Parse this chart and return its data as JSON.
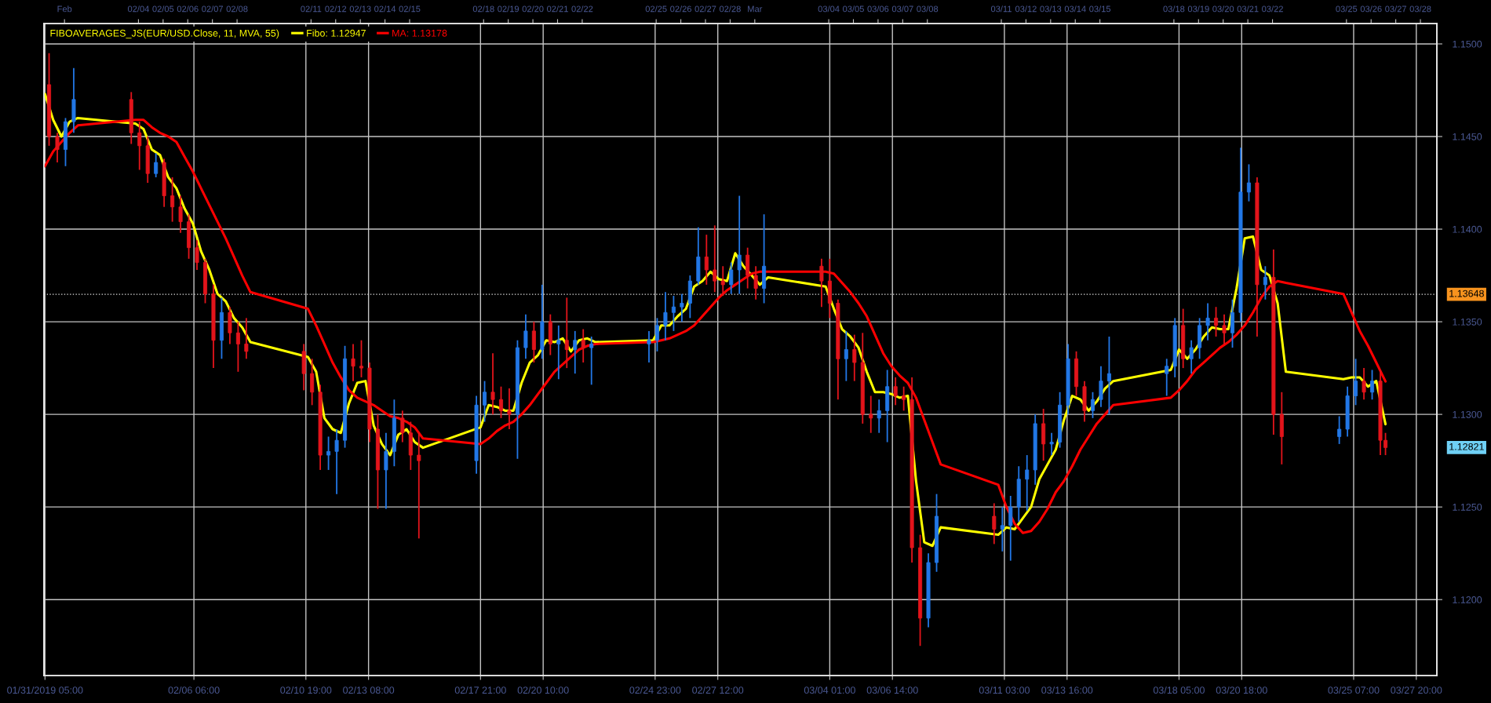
{
  "chart_data": {
    "type": "candlestick",
    "legend_title": "FIBOAVERAGES_JS(EUR/USD.Close, 11, MVA, 55)",
    "legend": "top left",
    "grid": true,
    "xlim": [
      "2019-01-31T04:00",
      "2019-03-28T16:00"
    ],
    "xticks": [
      {
        "value": "2019-01-31T05:00",
        "label": "01/31/2019 05:00"
      },
      {
        "value": "2019-02-06T06:00",
        "label": "02/06 06:00"
      },
      {
        "value": "2019-02-10T19:00",
        "label": "02/10 19:00"
      },
      {
        "value": "2019-02-13T08:00",
        "label": "02/13 08:00"
      },
      {
        "value": "2019-02-17T21:00",
        "label": "02/17 21:00"
      },
      {
        "value": "2019-02-20T10:00",
        "label": "02/20 10:00"
      },
      {
        "value": "2019-02-24T23:00",
        "label": "02/24 23:00"
      },
      {
        "value": "2019-02-27T12:00",
        "label": "02/27 12:00"
      },
      {
        "value": "2019-03-04T01:00",
        "label": "03/04 01:00"
      },
      {
        "value": "2019-03-06T14:00",
        "label": "03/06 14:00"
      },
      {
        "value": "2019-03-11T03:00",
        "label": "03/11 03:00"
      },
      {
        "value": "2019-03-13T16:00",
        "label": "03/13 16:00"
      },
      {
        "value": "2019-03-18T05:00",
        "label": "03/18 05:00"
      },
      {
        "value": "2019-03-20T18:00",
        "label": "03/20 18:00"
      },
      {
        "value": "2019-03-25T07:00",
        "label": "03/25 07:00"
      },
      {
        "value": "2019-03-27T20:00",
        "label": "03/27 20:00"
      }
    ],
    "x2lim": [
      "2019-01-31T04:00",
      "2019-03-28T16:00"
    ],
    "x2ticks": [
      {
        "value": "2019-02-01",
        "label": "Feb"
      },
      {
        "value": "2019-02-04",
        "label": "02/04"
      },
      {
        "value": "2019-02-05",
        "label": "02/05"
      },
      {
        "value": "2019-02-06",
        "label": "02/06"
      },
      {
        "value": "2019-02-07",
        "label": "02/07"
      },
      {
        "value": "2019-02-08",
        "label": "02/08"
      },
      {
        "value": "2019-02-11",
        "label": "02/11"
      },
      {
        "value": "2019-02-12",
        "label": "02/12"
      },
      {
        "value": "2019-02-13",
        "label": "02/13"
      },
      {
        "value": "2019-02-14",
        "label": "02/14"
      },
      {
        "value": "2019-02-15",
        "label": "02/15"
      },
      {
        "value": "2019-02-18",
        "label": "02/18"
      },
      {
        "value": "2019-02-19",
        "label": "02/19"
      },
      {
        "value": "2019-02-20",
        "label": "02/20"
      },
      {
        "value": "2019-02-21",
        "label": "02/21"
      },
      {
        "value": "2019-02-22",
        "label": "02/22"
      },
      {
        "value": "2019-02-25",
        "label": "02/25"
      },
      {
        "value": "2019-02-26",
        "label": "02/26"
      },
      {
        "value": "2019-02-27",
        "label": "02/27"
      },
      {
        "value": "2019-02-28",
        "label": "02/28"
      },
      {
        "value": "2019-03-01",
        "label": "Mar"
      },
      {
        "value": "2019-03-04",
        "label": "03/04"
      },
      {
        "value": "2019-03-05",
        "label": "03/05"
      },
      {
        "value": "2019-03-06",
        "label": "03/06"
      },
      {
        "value": "2019-03-07",
        "label": "03/07"
      },
      {
        "value": "2019-03-08",
        "label": "03/08"
      },
      {
        "value": "2019-03-11",
        "label": "03/11"
      },
      {
        "value": "2019-03-12",
        "label": "03/12"
      },
      {
        "value": "2019-03-13",
        "label": "03/13"
      },
      {
        "value": "2019-03-14",
        "label": "03/14"
      },
      {
        "value": "2019-03-15",
        "label": "03/15"
      },
      {
        "value": "2019-03-18",
        "label": "03/18"
      },
      {
        "value": "2019-03-19",
        "label": "03/19"
      },
      {
        "value": "2019-03-20",
        "label": "03/20"
      },
      {
        "value": "2019-03-21",
        "label": "03/21"
      },
      {
        "value": "2019-03-22",
        "label": "03/22"
      },
      {
        "value": "2019-03-25",
        "label": "03/25"
      },
      {
        "value": "2019-03-26",
        "label": "03/26"
      },
      {
        "value": "2019-03-27",
        "label": "03/27"
      },
      {
        "value": "2019-03-28",
        "label": "03/28"
      }
    ],
    "ylim": [
      1.1159,
      1.1511
    ],
    "yticks": [
      {
        "value": 1.12,
        "label": "1.1200"
      },
      {
        "value": 1.125,
        "label": "1.1250"
      },
      {
        "value": 1.13,
        "label": "1.1300"
      },
      {
        "value": 1.135,
        "label": "1.1350"
      },
      {
        "value": 1.14,
        "label": "1.1400"
      },
      {
        "value": 1.145,
        "label": "1.1450"
      },
      {
        "value": 1.15,
        "label": "1.1500"
      }
    ],
    "ref_lines": [
      {
        "axis": "y",
        "value": 1.13648,
        "label": "1.13648",
        "color": "#dcdcdc",
        "line_style": "dotted"
      }
    ],
    "annotations": [
      "1.12821"
    ],
    "x": [
      "2019-01-31T09:00",
      "2019-01-31T17:00",
      "2019-02-01T01:00",
      "2019-02-01T09:00",
      "2019-02-03T17:00",
      "2019-02-04T01:00",
      "2019-02-04T09:00",
      "2019-02-04T17:00",
      "2019-02-05T01:00",
      "2019-02-05T09:00",
      "2019-02-05T17:00",
      "2019-02-06T01:00",
      "2019-02-06T09:00",
      "2019-02-06T17:00",
      "2019-02-07T01:00",
      "2019-02-07T09:00",
      "2019-02-07T17:00",
      "2019-02-08T01:00",
      "2019-02-08T09:00",
      "2019-02-10T17:00",
      "2019-02-11T01:00",
      "2019-02-11T09:00",
      "2019-02-11T17:00",
      "2019-02-12T01:00",
      "2019-02-12T09:00",
      "2019-02-12T17:00",
      "2019-02-13T01:00",
      "2019-02-13T09:00",
      "2019-02-13T17:00",
      "2019-02-14T01:00",
      "2019-02-14T09:00",
      "2019-02-14T17:00",
      "2019-02-15T01:00",
      "2019-02-15T09:00",
      "2019-02-17T17:00",
      "2019-02-18T01:00",
      "2019-02-18T09:00",
      "2019-02-18T17:00",
      "2019-02-19T01:00",
      "2019-02-19T09:00",
      "2019-02-19T17:00",
      "2019-02-20T01:00",
      "2019-02-20T09:00",
      "2019-02-20T17:00",
      "2019-02-21T01:00",
      "2019-02-21T09:00",
      "2019-02-21T17:00",
      "2019-02-22T01:00",
      "2019-02-22T09:00",
      "2019-02-24T17:00",
      "2019-02-25T01:00",
      "2019-02-25T09:00",
      "2019-02-25T17:00",
      "2019-02-26T01:00",
      "2019-02-26T09:00",
      "2019-02-26T17:00",
      "2019-02-27T01:00",
      "2019-02-27T09:00",
      "2019-02-27T17:00",
      "2019-02-28T01:00",
      "2019-02-28T09:00",
      "2019-02-28T17:00",
      "2019-03-01T01:00",
      "2019-03-01T09:00",
      "2019-03-03T17:00",
      "2019-03-04T01:00",
      "2019-03-04T09:00",
      "2019-03-04T17:00",
      "2019-03-05T01:00",
      "2019-03-05T09:00",
      "2019-03-05T17:00",
      "2019-03-06T01:00",
      "2019-03-06T09:00",
      "2019-03-06T17:00",
      "2019-03-07T01:00",
      "2019-03-07T09:00",
      "2019-03-07T17:00",
      "2019-03-08T01:00",
      "2019-03-08T09:00",
      "2019-03-10T17:00",
      "2019-03-11T01:00",
      "2019-03-11T09:00",
      "2019-03-11T17:00",
      "2019-03-12T01:00",
      "2019-03-12T09:00",
      "2019-03-12T17:00",
      "2019-03-13T01:00",
      "2019-03-13T09:00",
      "2019-03-13T17:00",
      "2019-03-14T01:00",
      "2019-03-14T09:00",
      "2019-03-14T17:00",
      "2019-03-15T01:00",
      "2019-03-15T09:00",
      "2019-03-17T17:00",
      "2019-03-18T01:00",
      "2019-03-18T09:00",
      "2019-03-18T17:00",
      "2019-03-19T01:00",
      "2019-03-19T09:00",
      "2019-03-19T17:00",
      "2019-03-20T01:00",
      "2019-03-20T09:00",
      "2019-03-20T17:00",
      "2019-03-21T01:00",
      "2019-03-21T09:00",
      "2019-03-21T17:00",
      "2019-03-22T01:00",
      "2019-03-22T09:00",
      "2019-03-24T17:00",
      "2019-03-25T01:00",
      "2019-03-25T09:00",
      "2019-03-25T17:00",
      "2019-03-26T01:00",
      "2019-03-26T09:00",
      "2019-03-26T14:00"
    ],
    "series": [
      {
        "ohlc": [
          [
            1.1478,
            1.1495,
            1.1445,
            1.145
          ],
          [
            1.145,
            1.1452,
            1.1436,
            1.1443
          ],
          [
            1.1443,
            1.146,
            1.1434,
            1.1458
          ],
          [
            1.1458,
            1.1487,
            1.1452,
            1.147
          ],
          [
            1.147,
            1.1474,
            1.1446,
            1.1452
          ],
          [
            1.1452,
            1.1458,
            1.1432,
            1.1445
          ],
          [
            1.1445,
            1.145,
            1.1425,
            1.143
          ],
          [
            1.143,
            1.1441,
            1.1428,
            1.1436
          ],
          [
            1.1436,
            1.1438,
            1.1412,
            1.1418
          ],
          [
            1.1418,
            1.1428,
            1.1404,
            1.1412
          ],
          [
            1.1412,
            1.1418,
            1.1398,
            1.1404
          ],
          [
            1.1404,
            1.1408,
            1.1384,
            1.139
          ],
          [
            1.139,
            1.1394,
            1.1378,
            1.1382
          ],
          [
            1.1382,
            1.1384,
            1.136,
            1.1365
          ],
          [
            1.1365,
            1.137,
            1.1325,
            1.134
          ],
          [
            1.134,
            1.1363,
            1.133,
            1.1355
          ],
          [
            1.1355,
            1.1358,
            1.1338,
            1.1344
          ],
          [
            1.1344,
            1.135,
            1.1323,
            1.1338
          ],
          [
            1.1338,
            1.1352,
            1.133,
            1.1334
          ],
          [
            1.1334,
            1.1338,
            1.1313,
            1.1322
          ],
          [
            1.1322,
            1.133,
            1.1305,
            1.1312
          ],
          [
            1.1312,
            1.1316,
            1.127,
            1.1278
          ],
          [
            1.1278,
            1.1288,
            1.127,
            1.128
          ],
          [
            1.128,
            1.1292,
            1.1257,
            1.1286
          ],
          [
            1.1286,
            1.1337,
            1.1282,
            1.133
          ],
          [
            1.133,
            1.1338,
            1.1318,
            1.1326
          ],
          [
            1.1326,
            1.134,
            1.132,
            1.1325
          ],
          [
            1.1325,
            1.1328,
            1.1285,
            1.1292
          ],
          [
            1.1292,
            1.13,
            1.1249,
            1.127
          ],
          [
            1.127,
            1.129,
            1.1249,
            1.128
          ],
          [
            1.128,
            1.1308,
            1.1272,
            1.1298
          ],
          [
            1.1298,
            1.1302,
            1.1285,
            1.129
          ],
          [
            1.129,
            1.1296,
            1.127,
            1.1278
          ],
          [
            1.1278,
            1.129,
            1.1233,
            1.1275
          ],
          [
            1.1275,
            1.131,
            1.1268,
            1.1305
          ],
          [
            1.1305,
            1.1318,
            1.1296,
            1.1312
          ],
          [
            1.1312,
            1.1333,
            1.13,
            1.1308
          ],
          [
            1.1308,
            1.1315,
            1.1298,
            1.1302
          ],
          [
            1.1302,
            1.1314,
            1.1292,
            1.13
          ],
          [
            1.13,
            1.134,
            1.1276,
            1.1336
          ],
          [
            1.1336,
            1.1354,
            1.133,
            1.1345
          ],
          [
            1.1345,
            1.135,
            1.1328,
            1.1335
          ],
          [
            1.1335,
            1.137,
            1.133,
            1.135
          ],
          [
            1.135,
            1.1354,
            1.1332,
            1.1338
          ],
          [
            1.1338,
            1.1348,
            1.1319,
            1.134
          ],
          [
            1.134,
            1.1363,
            1.1325,
            1.1335
          ],
          [
            1.1335,
            1.1345,
            1.1322,
            1.134
          ],
          [
            1.134,
            1.1346,
            1.1328,
            1.1336
          ],
          [
            1.1336,
            1.1342,
            1.1316,
            1.1338
          ],
          [
            1.1338,
            1.1345,
            1.1328,
            1.134
          ],
          [
            1.134,
            1.1352,
            1.1334,
            1.1348
          ],
          [
            1.1348,
            1.1366,
            1.134,
            1.1355
          ],
          [
            1.1355,
            1.1364,
            1.1345,
            1.1358
          ],
          [
            1.1358,
            1.1365,
            1.135,
            1.136
          ],
          [
            1.136,
            1.1375,
            1.1352,
            1.1372
          ],
          [
            1.1372,
            1.1401,
            1.137,
            1.1385
          ],
          [
            1.1385,
            1.1397,
            1.137,
            1.1378
          ],
          [
            1.1378,
            1.1402,
            1.1366,
            1.1372
          ],
          [
            1.1372,
            1.138,
            1.1364,
            1.137
          ],
          [
            1.137,
            1.1382,
            1.1365,
            1.1378
          ],
          [
            1.1378,
            1.1418,
            1.1365,
            1.1386
          ],
          [
            1.1386,
            1.139,
            1.1368,
            1.1375
          ],
          [
            1.1375,
            1.138,
            1.1362,
            1.1368
          ],
          [
            1.1368,
            1.1408,
            1.136,
            1.138
          ],
          [
            1.138,
            1.1384,
            1.1358,
            1.1372
          ],
          [
            1.1372,
            1.1384,
            1.1352,
            1.136
          ],
          [
            1.136,
            1.1362,
            1.1308,
            1.133
          ],
          [
            1.133,
            1.1345,
            1.1318,
            1.1335
          ],
          [
            1.1335,
            1.1343,
            1.1318,
            1.1328
          ],
          [
            1.1328,
            1.1344,
            1.1295,
            1.13
          ],
          [
            1.13,
            1.131,
            1.129,
            1.1298
          ],
          [
            1.1298,
            1.1308,
            1.129,
            1.1302
          ],
          [
            1.1302,
            1.1324,
            1.1285,
            1.1315
          ],
          [
            1.1315,
            1.132,
            1.1305,
            1.131
          ],
          [
            1.131,
            1.1315,
            1.1302,
            1.1308
          ],
          [
            1.1308,
            1.132,
            1.122,
            1.1228
          ],
          [
            1.1228,
            1.1235,
            1.1175,
            1.119
          ],
          [
            1.119,
            1.1225,
            1.1185,
            1.122
          ],
          [
            1.122,
            1.1257,
            1.1215,
            1.1245
          ],
          [
            1.1245,
            1.1252,
            1.123,
            1.1238
          ],
          [
            1.1238,
            1.125,
            1.1226,
            1.124
          ],
          [
            1.124,
            1.1256,
            1.1221,
            1.125
          ],
          [
            1.125,
            1.1272,
            1.1242,
            1.1265
          ],
          [
            1.1265,
            1.1278,
            1.1248,
            1.127
          ],
          [
            1.127,
            1.13,
            1.1262,
            1.1295
          ],
          [
            1.1295,
            1.1303,
            1.1275,
            1.1284
          ],
          [
            1.1284,
            1.129,
            1.1278,
            1.1285
          ],
          [
            1.1285,
            1.1312,
            1.1282,
            1.1305
          ],
          [
            1.1305,
            1.1338,
            1.13,
            1.133
          ],
          [
            1.133,
            1.1334,
            1.131,
            1.1315
          ],
          [
            1.1315,
            1.1318,
            1.1296,
            1.1302
          ],
          [
            1.1302,
            1.1312,
            1.1298,
            1.1308
          ],
          [
            1.1308,
            1.1326,
            1.1304,
            1.1318
          ],
          [
            1.1318,
            1.1342,
            1.13,
            1.1322
          ],
          [
            1.1322,
            1.133,
            1.131,
            1.1326
          ],
          [
            1.1326,
            1.1352,
            1.132,
            1.1348
          ],
          [
            1.1348,
            1.1357,
            1.1325,
            1.133
          ],
          [
            1.133,
            1.134,
            1.1322,
            1.1336
          ],
          [
            1.1336,
            1.1352,
            1.133,
            1.1348
          ],
          [
            1.1348,
            1.136,
            1.134,
            1.1352
          ],
          [
            1.1352,
            1.1358,
            1.1342,
            1.1348
          ],
          [
            1.1348,
            1.1354,
            1.1338,
            1.1344
          ],
          [
            1.1344,
            1.1362,
            1.1336,
            1.1355
          ],
          [
            1.1355,
            1.1444,
            1.135,
            1.142
          ],
          [
            1.142,
            1.1435,
            1.1415,
            1.1425
          ],
          [
            1.1425,
            1.1428,
            1.1342,
            1.137
          ],
          [
            1.137,
            1.138,
            1.1362,
            1.1374
          ],
          [
            1.1374,
            1.1389,
            1.1289,
            1.13
          ],
          [
            1.13,
            1.1312,
            1.1273,
            1.1288
          ],
          [
            1.1288,
            1.1299,
            1.1284,
            1.1292
          ],
          [
            1.1292,
            1.1315,
            1.1288,
            1.131
          ],
          [
            1.131,
            1.133,
            1.1305,
            1.1318
          ],
          [
            1.1318,
            1.1325,
            1.1308,
            1.1312
          ],
          [
            1.1312,
            1.1324,
            1.1308,
            1.1318
          ],
          [
            1.1318,
            1.1324,
            1.1278,
            1.1286
          ],
          [
            1.1286,
            1.129,
            1.1278,
            1.12821
          ]
        ],
        "colors": [
          "#e3141b",
          "#e3141b",
          "#2277e6",
          "#2277e6",
          "#e3141b",
          "#e3141b",
          "#e3141b",
          "#2277e6",
          "#e3141b",
          "#e3141b",
          "#e3141b",
          "#e3141b",
          "#e3141b",
          "#e3141b",
          "#e3141b",
          "#2277e6",
          "#e3141b",
          "#e3141b",
          "#e3141b",
          "#e3141b",
          "#e3141b",
          "#e3141b",
          "#2277e6",
          "#2277e6",
          "#2277e6",
          "#e3141b",
          "#e3141b",
          "#e3141b",
          "#e3141b",
          "#2277e6",
          "#2277e6",
          "#e3141b",
          "#e3141b",
          "#e3141b",
          "#2277e6",
          "#2277e6",
          "#e3141b",
          "#e3141b",
          "#e3141b",
          "#2277e6",
          "#2277e6",
          "#e3141b",
          "#2277e6",
          "#e3141b",
          "#2277e6",
          "#e3141b",
          "#2277e6",
          "#e3141b",
          "#2277e6",
          "#2277e6",
          "#2277e6",
          "#2277e6",
          "#2277e6",
          "#2277e6",
          "#2277e6",
          "#2277e6",
          "#e3141b",
          "#e3141b",
          "#e3141b",
          "#2277e6",
          "#2277e6",
          "#e3141b",
          "#e3141b",
          "#2277e6",
          "#e3141b",
          "#e3141b",
          "#e3141b",
          "#2277e6",
          "#e3141b",
          "#e3141b",
          "#e3141b",
          "#2277e6",
          "#2277e6",
          "#e3141b",
          "#e3141b",
          "#e3141b",
          "#e3141b",
          "#2277e6",
          "#2277e6",
          "#e3141b",
          "#2277e6",
          "#2277e6",
          "#2277e6",
          "#2277e6",
          "#2277e6",
          "#e3141b",
          "#2277e6",
          "#2277e6",
          "#2277e6",
          "#e3141b",
          "#e3141b",
          "#2277e6",
          "#2277e6",
          "#2277e6",
          "#2277e6",
          "#2277e6",
          "#e3141b",
          "#2277e6",
          "#2277e6",
          "#2277e6",
          "#e3141b",
          "#e3141b",
          "#2277e6",
          "#2277e6",
          "#2277e6",
          "#e3141b",
          "#2277e6",
          "#e3141b",
          "#e3141b",
          "#2277e6",
          "#2277e6",
          "#2277e6",
          "#e3141b",
          "#2277e6",
          "#e3141b",
          "#e3141b"
        ]
      },
      {
        "type": "line",
        "name": "Fibo: 1.12947",
        "color": "#ffff00",
        "x": [
          "2019-01-31T05:00",
          "2019-01-31T13:00",
          "2019-01-31T21:00",
          "2019-02-01T05:00",
          "2019-02-01T13:00",
          "2019-02-03T21:00",
          "2019-02-04T05:00",
          "2019-02-04T13:00",
          "2019-02-04T21:00",
          "2019-02-05T05:00",
          "2019-02-05T13:00",
          "2019-02-05T21:00",
          "2019-02-06T05:00",
          "2019-02-06T13:00",
          "2019-02-06T21:00",
          "2019-02-07T05:00",
          "2019-02-07T13:00",
          "2019-02-07T21:00",
          "2019-02-08T05:00",
          "2019-02-08T13:00",
          "2019-02-10T21:00",
          "2019-02-11T05:00",
          "2019-02-11T13:00",
          "2019-02-11T21:00",
          "2019-02-12T05:00",
          "2019-02-12T13:00",
          "2019-02-12T21:00",
          "2019-02-13T05:00",
          "2019-02-13T13:00",
          "2019-02-13T21:00",
          "2019-02-14T05:00",
          "2019-02-14T13:00",
          "2019-02-14T21:00",
          "2019-02-15T05:00",
          "2019-02-15T13:00",
          "2019-02-17T21:00",
          "2019-02-18T05:00",
          "2019-02-18T13:00",
          "2019-02-18T21:00",
          "2019-02-19T05:00",
          "2019-02-19T13:00",
          "2019-02-19T21:00",
          "2019-02-20T05:00",
          "2019-02-20T13:00",
          "2019-02-20T21:00",
          "2019-02-21T05:00",
          "2019-02-21T13:00",
          "2019-02-21T21:00",
          "2019-02-22T05:00",
          "2019-02-22T13:00",
          "2019-02-24T21:00",
          "2019-02-25T05:00",
          "2019-02-25T13:00",
          "2019-02-25T21:00",
          "2019-02-26T05:00",
          "2019-02-26T13:00",
          "2019-02-26T21:00",
          "2019-02-27T05:00",
          "2019-02-27T13:00",
          "2019-02-27T21:00",
          "2019-02-28T05:00",
          "2019-02-28T13:00",
          "2019-02-28T21:00",
          "2019-03-01T05:00",
          "2019-03-01T13:00",
          "2019-03-03T21:00",
          "2019-03-04T05:00",
          "2019-03-04T13:00",
          "2019-03-04T21:00",
          "2019-03-05T05:00",
          "2019-03-05T13:00",
          "2019-03-05T21:00",
          "2019-03-06T05:00",
          "2019-03-06T13:00",
          "2019-03-06T21:00",
          "2019-03-07T05:00",
          "2019-03-07T13:00",
          "2019-03-07T21:00",
          "2019-03-08T05:00",
          "2019-03-08T13:00",
          "2019-03-10T21:00",
          "2019-03-11T05:00",
          "2019-03-11T13:00",
          "2019-03-11T21:00",
          "2019-03-12T05:00",
          "2019-03-12T13:00",
          "2019-03-12T21:00",
          "2019-03-13T05:00",
          "2019-03-13T13:00",
          "2019-03-13T21:00",
          "2019-03-14T05:00",
          "2019-03-14T13:00",
          "2019-03-14T21:00",
          "2019-03-15T05:00",
          "2019-03-15T13:00",
          "2019-03-17T21:00",
          "2019-03-18T05:00",
          "2019-03-18T13:00",
          "2019-03-18T21:00",
          "2019-03-19T05:00",
          "2019-03-19T13:00",
          "2019-03-19T21:00",
          "2019-03-20T05:00",
          "2019-03-20T13:00",
          "2019-03-20T21:00",
          "2019-03-21T05:00",
          "2019-03-21T13:00",
          "2019-03-21T21:00",
          "2019-03-22T05:00",
          "2019-03-22T13:00",
          "2019-03-24T21:00",
          "2019-03-25T05:00",
          "2019-03-25T13:00",
          "2019-03-25T21:00",
          "2019-03-26T05:00",
          "2019-03-26T14:00"
        ],
        "values": [
          1.1473,
          1.1459,
          1.145,
          1.1458,
          1.146,
          1.1457,
          1.1454,
          1.1443,
          1.144,
          1.1428,
          1.1422,
          1.1411,
          1.1403,
          1.1388,
          1.1378,
          1.1365,
          1.1361,
          1.1352,
          1.1347,
          1.1339,
          1.1331,
          1.1323,
          1.1298,
          1.1292,
          1.129,
          1.1306,
          1.1317,
          1.1318,
          1.1294,
          1.1284,
          1.1278,
          1.1289,
          1.1292,
          1.1285,
          1.1282,
          1.1293,
          1.1305,
          1.1304,
          1.1302,
          1.1302,
          1.1317,
          1.1328,
          1.1332,
          1.134,
          1.1339,
          1.1341,
          1.1334,
          1.134,
          1.1341,
          1.1339,
          1.134,
          1.1348,
          1.1348,
          1.1353,
          1.1357,
          1.1369,
          1.1372,
          1.1377,
          1.1373,
          1.1372,
          1.1387,
          1.138,
          1.1375,
          1.137,
          1.1374,
          1.1369,
          1.1357,
          1.1346,
          1.1342,
          1.1336,
          1.1323,
          1.1312,
          1.1312,
          1.1311,
          1.1309,
          1.131,
          1.1264,
          1.1231,
          1.1229,
          1.1239,
          1.1235,
          1.1239,
          1.1238,
          1.1244,
          1.125,
          1.1265,
          1.1273,
          1.1281,
          1.1297,
          1.131,
          1.1308,
          1.1302,
          1.1307,
          1.1314,
          1.1318,
          1.1324,
          1.1335,
          1.133,
          1.1335,
          1.1342,
          1.1347,
          1.1346,
          1.1346,
          1.1368,
          1.1395,
          1.1396,
          1.1378,
          1.1375,
          1.136,
          1.1323,
          1.1319,
          1.132,
          1.132,
          1.1315,
          1.1318,
          1.12947
        ]
      },
      {
        "type": "line",
        "name": "MA: 1.13178",
        "color": "#ff0000",
        "x": [
          "2019-01-31T05:00",
          "2019-01-31T13:00",
          "2019-01-31T21:00",
          "2019-02-01T05:00",
          "2019-02-01T13:00",
          "2019-02-03T21:00",
          "2019-02-04T05:00",
          "2019-02-04T13:00",
          "2019-02-04T21:00",
          "2019-02-05T05:00",
          "2019-02-05T13:00",
          "2019-02-05T21:00",
          "2019-02-06T05:00",
          "2019-02-06T13:00",
          "2019-02-06T21:00",
          "2019-02-07T05:00",
          "2019-02-07T13:00",
          "2019-02-07T21:00",
          "2019-02-08T05:00",
          "2019-02-08T13:00",
          "2019-02-10T21:00",
          "2019-02-11T05:00",
          "2019-02-11T13:00",
          "2019-02-11T21:00",
          "2019-02-12T05:00",
          "2019-02-12T13:00",
          "2019-02-12T21:00",
          "2019-02-13T05:00",
          "2019-02-13T13:00",
          "2019-02-13T21:00",
          "2019-02-14T05:00",
          "2019-02-14T13:00",
          "2019-02-14T21:00",
          "2019-02-15T05:00",
          "2019-02-15T13:00",
          "2019-02-17T21:00",
          "2019-02-18T05:00",
          "2019-02-18T13:00",
          "2019-02-18T21:00",
          "2019-02-19T05:00",
          "2019-02-19T13:00",
          "2019-02-19T21:00",
          "2019-02-20T05:00",
          "2019-02-20T13:00",
          "2019-02-20T21:00",
          "2019-02-21T05:00",
          "2019-02-21T13:00",
          "2019-02-21T21:00",
          "2019-02-22T05:00",
          "2019-02-22T13:00",
          "2019-02-24T21:00",
          "2019-02-25T05:00",
          "2019-02-25T13:00",
          "2019-02-25T21:00",
          "2019-02-26T05:00",
          "2019-02-26T13:00",
          "2019-02-26T21:00",
          "2019-02-27T05:00",
          "2019-02-27T13:00",
          "2019-02-27T21:00",
          "2019-02-28T05:00",
          "2019-02-28T13:00",
          "2019-02-28T21:00",
          "2019-03-01T05:00",
          "2019-03-01T13:00",
          "2019-03-03T21:00",
          "2019-03-04T05:00",
          "2019-03-04T13:00",
          "2019-03-04T21:00",
          "2019-03-05T05:00",
          "2019-03-05T13:00",
          "2019-03-05T21:00",
          "2019-03-06T05:00",
          "2019-03-06T13:00",
          "2019-03-06T21:00",
          "2019-03-07T05:00",
          "2019-03-07T13:00",
          "2019-03-07T21:00",
          "2019-03-08T05:00",
          "2019-03-08T13:00",
          "2019-03-10T21:00",
          "2019-03-11T05:00",
          "2019-03-11T13:00",
          "2019-03-11T21:00",
          "2019-03-12T05:00",
          "2019-03-12T13:00",
          "2019-03-12T21:00",
          "2019-03-13T05:00",
          "2019-03-13T13:00",
          "2019-03-13T21:00",
          "2019-03-14T05:00",
          "2019-03-14T13:00",
          "2019-03-14T21:00",
          "2019-03-15T05:00",
          "2019-03-15T13:00",
          "2019-03-17T21:00",
          "2019-03-18T05:00",
          "2019-03-18T13:00",
          "2019-03-18T21:00",
          "2019-03-19T05:00",
          "2019-03-19T13:00",
          "2019-03-19T21:00",
          "2019-03-20T05:00",
          "2019-03-20T13:00",
          "2019-03-20T21:00",
          "2019-03-21T05:00",
          "2019-03-21T13:00",
          "2019-03-21T21:00",
          "2019-03-22T05:00",
          "2019-03-22T13:00",
          "2019-03-24T21:00",
          "2019-03-25T05:00",
          "2019-03-25T13:00",
          "2019-03-25T21:00",
          "2019-03-26T05:00",
          "2019-03-26T14:00"
        ],
        "values": [
          1.1434,
          1.1442,
          1.1447,
          1.1452,
          1.1456,
          1.1459,
          1.1459,
          1.1455,
          1.1452,
          1.145,
          1.1447,
          1.1439,
          1.1431,
          1.1422,
          1.1413,
          1.1404,
          1.1395,
          1.1385,
          1.1375,
          1.1366,
          1.1357,
          1.1348,
          1.1338,
          1.1328,
          1.132,
          1.1313,
          1.1309,
          1.1307,
          1.1305,
          1.1302,
          1.1299,
          1.1298,
          1.1296,
          1.1293,
          1.1287,
          1.1284,
          1.1287,
          1.1291,
          1.1294,
          1.1296,
          1.13,
          1.1305,
          1.1311,
          1.1317,
          1.1323,
          1.1327,
          1.1331,
          1.1335,
          1.1337,
          1.1338,
          1.1339,
          1.134,
          1.1341,
          1.1343,
          1.1345,
          1.1348,
          1.1353,
          1.1358,
          1.1363,
          1.1367,
          1.137,
          1.1373,
          1.1376,
          1.1377,
          1.1377,
          1.1377,
          1.1376,
          1.1371,
          1.1366,
          1.136,
          1.1353,
          1.1343,
          1.1333,
          1.1326,
          1.1321,
          1.1317,
          1.1309,
          1.1297,
          1.1285,
          1.1273,
          1.1262,
          1.125,
          1.1241,
          1.1236,
          1.1237,
          1.1242,
          1.1249,
          1.1258,
          1.1264,
          1.1272,
          1.1281,
          1.1288,
          1.1295,
          1.13,
          1.1305,
          1.1309,
          1.1313,
          1.1318,
          1.1324,
          1.1328,
          1.1332,
          1.1336,
          1.1339,
          1.1343,
          1.1348,
          1.1355,
          1.1363,
          1.1369,
          1.1372,
          1.1371,
          1.1365,
          1.1355,
          1.1345,
          1.1337,
          1.1328,
          1.13178
        ]
      }
    ]
  }
}
